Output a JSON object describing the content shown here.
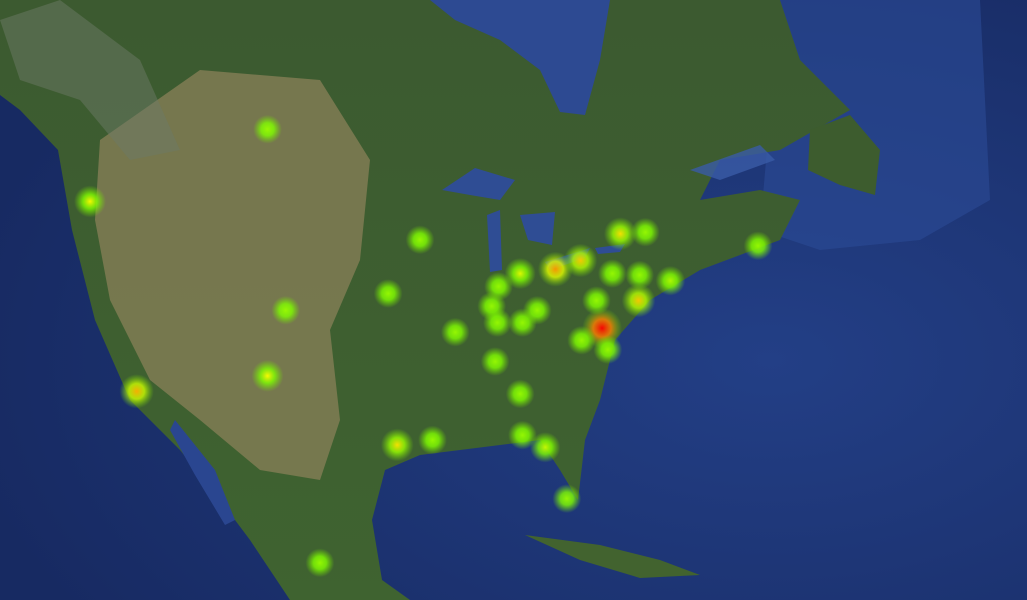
{
  "map": {
    "points": [
      {
        "lat": 52.0,
        "lon": -106.7,
        "intensity": 0.3
      },
      {
        "lat": 47.6,
        "lon": -122.3,
        "intensity": 0.5
      },
      {
        "lat": 34.1,
        "lon": -118.2,
        "intensity": 0.65
      },
      {
        "lat": 40.2,
        "lon": -105.1,
        "intensity": 0.3
      },
      {
        "lat": 35.3,
        "lon": -106.7,
        "intensity": 0.5
      },
      {
        "lat": 45.1,
        "lon": -93.3,
        "intensity": 0.3
      },
      {
        "lat": 41.4,
        "lon": -96.1,
        "intensity": 0.3
      },
      {
        "lat": 42.8,
        "lon": -84.5,
        "intensity": 0.45
      },
      {
        "lat": 43.1,
        "lon": -81.4,
        "intensity": 0.7
      },
      {
        "lat": 43.7,
        "lon": -79.2,
        "intensity": 0.6
      },
      {
        "lat": 45.5,
        "lon": -75.7,
        "intensity": 0.55
      },
      {
        "lat": 45.6,
        "lon": -73.5,
        "intensity": 0.3
      },
      {
        "lat": 42.8,
        "lon": -76.4,
        "intensity": 0.3
      },
      {
        "lat": 42.7,
        "lon": -74.0,
        "intensity": 0.3
      },
      {
        "lat": 40.9,
        "lon": -74.1,
        "intensity": 0.6
      },
      {
        "lat": 42.3,
        "lon": -71.3,
        "intensity": 0.35
      },
      {
        "lat": 44.7,
        "lon": -63.6,
        "intensity": 0.3
      },
      {
        "lat": 38.9,
        "lon": -77.3,
        "intensity": 1.0
      },
      {
        "lat": 38.0,
        "lon": -79.1,
        "intensity": 0.3
      },
      {
        "lat": 37.3,
        "lon": -76.8,
        "intensity": 0.3
      },
      {
        "lat": 40.9,
        "lon": -77.8,
        "intensity": 0.3
      },
      {
        "lat": 41.9,
        "lon": -86.4,
        "intensity": 0.3
      },
      {
        "lat": 40.5,
        "lon": -87.0,
        "intensity": 0.3
      },
      {
        "lat": 39.3,
        "lon": -86.5,
        "intensity": 0.3
      },
      {
        "lat": 39.3,
        "lon": -84.3,
        "intensity": 0.3
      },
      {
        "lat": 40.2,
        "lon": -83.0,
        "intensity": 0.3
      },
      {
        "lat": 38.6,
        "lon": -90.2,
        "intensity": 0.3
      },
      {
        "lat": 36.4,
        "lon": -86.7,
        "intensity": 0.3
      },
      {
        "lat": 33.9,
        "lon": -84.5,
        "intensity": 0.3
      },
      {
        "lat": 29.8,
        "lon": -95.3,
        "intensity": 0.55
      },
      {
        "lat": 30.2,
        "lon": -92.2,
        "intensity": 0.3
      },
      {
        "lat": 30.6,
        "lon": -84.3,
        "intensity": 0.3
      },
      {
        "lat": 29.6,
        "lon": -82.3,
        "intensity": 0.4
      },
      {
        "lat": 25.3,
        "lon": -80.4,
        "intensity": 0.3
      },
      {
        "lat": 19.7,
        "lon": -102.1,
        "intensity": 0.3
      }
    ]
  }
}
